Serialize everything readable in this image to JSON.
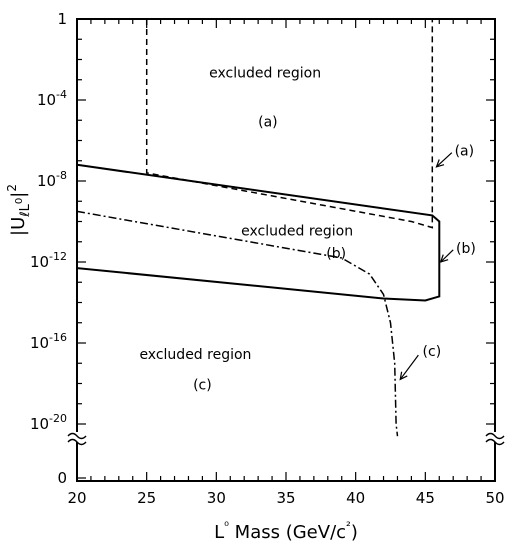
{
  "chart_data": {
    "type": "line",
    "xlabel": "L⁰ Mass (GeV/c²)",
    "ylabel": "|U_ℓL⁰|²",
    "xlim": [
      20,
      50
    ],
    "y_scale": "log with broken axis to 0",
    "ylim_log10": [
      -20,
      0
    ],
    "x_ticks": [
      "20",
      "25",
      "30",
      "35",
      "40",
      "45",
      "50"
    ],
    "y_ticks": [
      {
        "exp": 0,
        "label": "1",
        "sup": ""
      },
      {
        "exp": -4,
        "label": "10",
        "sup": "-4"
      },
      {
        "exp": -8,
        "label": "10",
        "sup": "-8"
      },
      {
        "exp": -12,
        "label": "10",
        "sup": "-12"
      },
      {
        "exp": -16,
        "label": "10",
        "sup": "-16"
      },
      {
        "exp": -20,
        "label": "10",
        "sup": "-20"
      },
      {
        "exp": "zero",
        "label": "0",
        "sup": ""
      }
    ],
    "series": [
      {
        "key": "a",
        "style": "dashed",
        "x": [
          25.0,
          25.0,
          44.0,
          45.5,
          45.5,
          45.5
        ],
        "log10_y": [
          0,
          -7.6,
          -10.0,
          -10.3,
          -4.0,
          0
        ]
      },
      {
        "key": "b",
        "style": "solid",
        "x": [
          20.0,
          45.5,
          46.0,
          46.0,
          45.0,
          42.0,
          20.0,
          20.0
        ],
        "log10_y": [
          -7.2,
          -9.7,
          -10.0,
          -13.7,
          -13.9,
          -13.8,
          -12.3,
          -7.2
        ]
      },
      {
        "key": "c",
        "style": "dash-dot",
        "x": [
          20.0,
          39.0,
          41.0,
          42.0,
          42.5,
          42.8,
          42.9,
          43.0
        ],
        "log10_y": [
          -9.5,
          -11.8,
          -12.6,
          -13.6,
          -15.0,
          -17.0,
          -20.0,
          -20.6
        ]
      }
    ],
    "annotations": [
      {
        "key": "excl_a",
        "text": "excluded region"
      },
      {
        "key": "lbl_a",
        "text": "(a)"
      },
      {
        "key": "excl_b",
        "text": "excluded region"
      },
      {
        "key": "lbl_b",
        "text": "(b)"
      },
      {
        "key": "excl_c",
        "text": "excluded region"
      },
      {
        "key": "lbl_c",
        "text": "(c)"
      }
    ],
    "curve_labels": [
      {
        "key": "a",
        "text": "(a)"
      },
      {
        "key": "b",
        "text": "(b)"
      },
      {
        "key": "c",
        "text": "(c)"
      }
    ]
  }
}
